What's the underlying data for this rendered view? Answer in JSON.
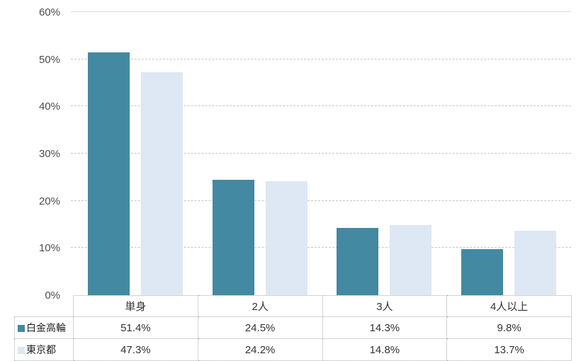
{
  "chart_data": {
    "type": "bar",
    "title": "",
    "categories": [
      "単身",
      "2人",
      "3人",
      "4人以上"
    ],
    "series": [
      {
        "name": "白金高輪",
        "color": "#4389a1",
        "values": [
          51.4,
          24.5,
          14.3,
          9.8
        ]
      },
      {
        "name": "東京都",
        "color": "#dde8f4",
        "values": [
          47.3,
          24.2,
          14.8,
          13.7
        ]
      }
    ],
    "value_suffix": "%",
    "ylabel": "",
    "xlabel": "",
    "ylim": [
      0,
      60
    ],
    "y_ticks": [
      "0%",
      "10%",
      "20%",
      "30%",
      "40%",
      "50%",
      "60%"
    ],
    "grid": true,
    "gridline_style": "dashed",
    "legend_position": "data-table-left",
    "data_table": true,
    "colors": {
      "series1": "#4389a1",
      "series2": "#dde8f4",
      "gridline": "#c7c7c7",
      "top_border": "#d9d9d9",
      "table_border": "#a8a8a8",
      "tick_text": "#4d4d4d",
      "cell_text": "#333333",
      "background": "#ffffff"
    }
  }
}
